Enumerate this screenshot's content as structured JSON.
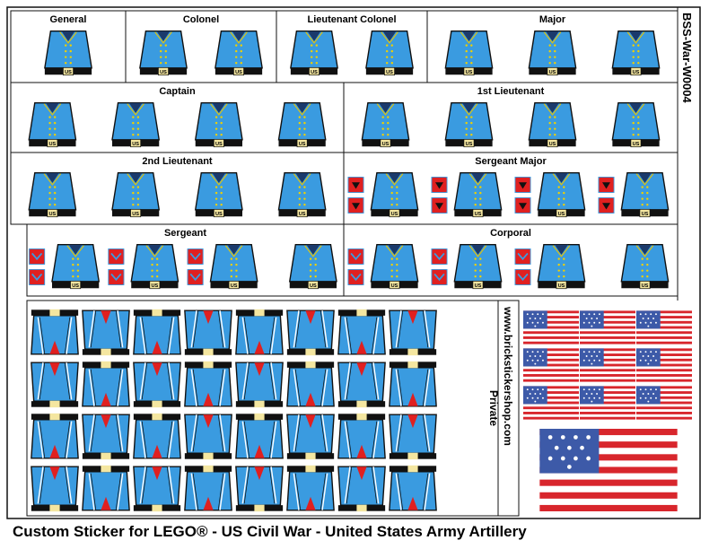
{
  "sheet_id": "BSS-War-W0004",
  "website": "www.brickstickershop.com",
  "private_label": "Private",
  "buckle": "US",
  "footer": "Custom Sticker for LEGO® - US Civil War - United States Army Artillery",
  "sections": [
    {
      "label": "General"
    },
    {
      "label": "Colonel"
    },
    {
      "label": "Lieutenant Colonel"
    },
    {
      "label": "Major"
    },
    {
      "label": "Captain"
    },
    {
      "label": "1st Lieutenant"
    },
    {
      "label": "2nd Lieutenant"
    },
    {
      "label": "Sergeant Major"
    },
    {
      "label": "Sergeant"
    },
    {
      "label": "Corporal"
    }
  ]
}
